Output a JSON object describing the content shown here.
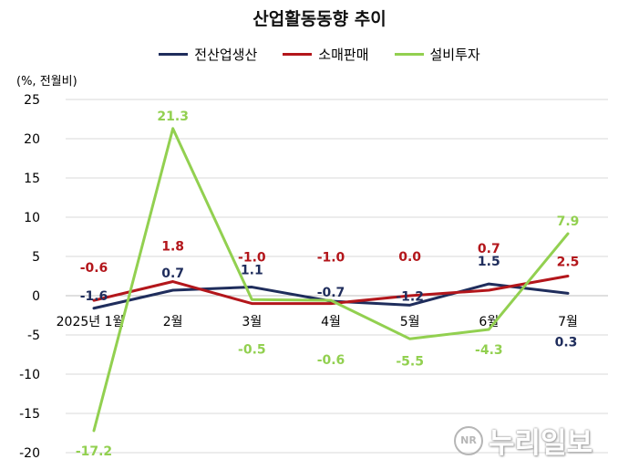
{
  "chart_data": {
    "type": "line",
    "title": "산업활동동향 추이",
    "ylabel": "(%, 전월비)",
    "categories": [
      "2025년 1월",
      "2월",
      "3월",
      "4월",
      "5월",
      "6월",
      "7월"
    ],
    "ylim": [
      -20,
      25
    ],
    "yticks": [
      25,
      20,
      15,
      10,
      5,
      0,
      -5,
      -10,
      -15,
      -20
    ],
    "grid": true,
    "legend": "top",
    "series": [
      {
        "name": "전산업생산",
        "color": "#1f2d5c",
        "values": [
          -1.6,
          0.7,
          1.1,
          -0.7,
          -1.2,
          1.5,
          0.3
        ],
        "labels": [
          "-1.6",
          "0.7",
          "1.1",
          "-0.7",
          "-1.2",
          "1.5",
          "0.3"
        ]
      },
      {
        "name": "소매판매",
        "color": "#b3161b",
        "values": [
          -0.6,
          1.8,
          -1.0,
          -1.0,
          0.0,
          0.7,
          2.5
        ],
        "labels": [
          "-0.6",
          "1.8",
          "-1.0",
          "-1.0",
          "0.0",
          "0.7",
          "2.5"
        ]
      },
      {
        "name": "설비투자",
        "color": "#92d050",
        "values": [
          -17.2,
          21.3,
          -0.5,
          -0.6,
          -5.5,
          -4.3,
          7.9
        ],
        "labels": [
          "-17.2",
          "21.3",
          "-0.5",
          "-0.6",
          "-5.5",
          "-4.3",
          "7.9"
        ]
      }
    ]
  },
  "watermark": {
    "text": "누리일보",
    "logo": "NR"
  }
}
